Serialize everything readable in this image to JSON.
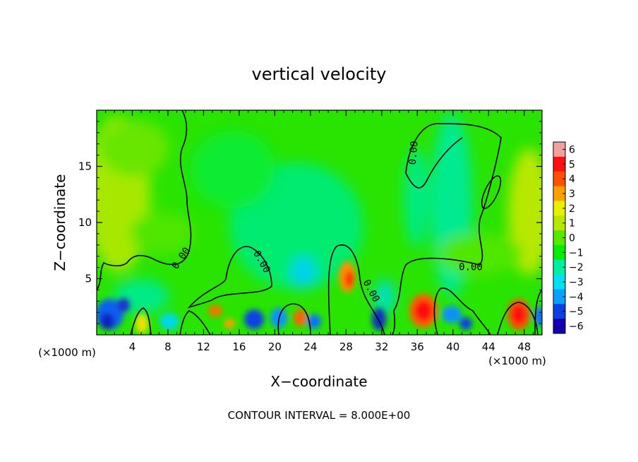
{
  "chart_data": {
    "type": "heatmap",
    "title": "vertical velocity",
    "xlabel": "X−coordinate",
    "ylabel": "Z−coordinate",
    "x_unit_label": "(×1000 m)",
    "y_unit_label": "(×1000 m)",
    "xlim": [
      0,
      50
    ],
    "ylim": [
      0,
      20
    ],
    "x_ticks": [
      4,
      8,
      12,
      16,
      20,
      24,
      28,
      32,
      36,
      40,
      44,
      48
    ],
    "y_ticks": [
      5,
      10,
      15
    ],
    "contour_interval_text": "CONTOUR INTERVAL = 8.000E+00",
    "contour_labels": [
      {
        "text": "0.00",
        "x": 9.5,
        "y": 6.8,
        "angle": -55
      },
      {
        "text": "0.00",
        "x": 18.5,
        "y": 6.5,
        "angle": 60
      },
      {
        "text": "0.00",
        "x": 30.8,
        "y": 3.9,
        "angle": 62
      },
      {
        "text": "0.00",
        "x": 35.6,
        "y": 16.2,
        "angle": -85
      },
      {
        "text": "0.00",
        "x": 42.0,
        "y": 6.0,
        "angle": 0
      }
    ],
    "colorbar": {
      "ticks": [
        "6",
        "5",
        "4",
        "3",
        "2",
        "1",
        "0",
        "−1",
        "−2",
        "−3",
        "−4",
        "−5",
        "−6"
      ],
      "colors": [
        "#f4a0a0",
        "#ff1010",
        "#ff5000",
        "#ffa000",
        "#e8f000",
        "#b6e800",
        "#58e800",
        "#00ee00",
        "#00eea0",
        "#00e0f0",
        "#0aa0ff",
        "#0a40e6",
        "#1400b0"
      ],
      "range": [
        -6,
        6
      ]
    }
  }
}
